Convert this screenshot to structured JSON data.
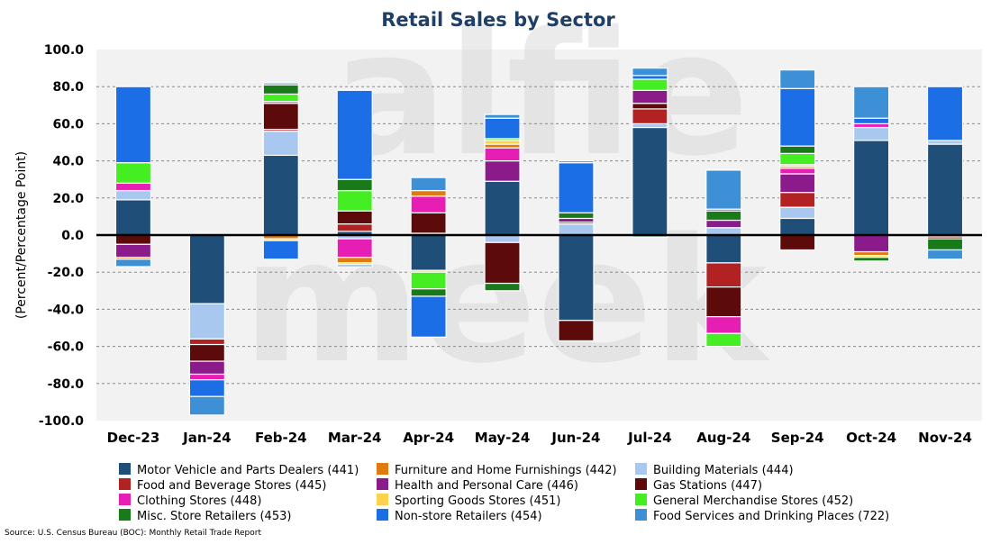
{
  "chart_data": {
    "type": "bar",
    "stacked": true,
    "title": "Retail Sales by Sector",
    "ylabel": "(Percent/Percentage Point)",
    "xlabel": "",
    "ylim": [
      -100,
      100
    ],
    "yticks": [
      "100.0",
      "80.0",
      "60.0",
      "40.0",
      "20.0",
      "0.0",
      "-20.0",
      "-40.0",
      "-60.0",
      "-80.0",
      "-100.0"
    ],
    "grid": "horizontal dashed",
    "legend_position": "bottom",
    "watermark": "alfie meek",
    "categories": [
      "Dec-23",
      "Jan-24",
      "Feb-24",
      "Mar-24",
      "Apr-24",
      "May-24",
      "Jun-24",
      "Jul-24",
      "Aug-24",
      "Sep-24",
      "Oct-24",
      "Nov-24"
    ],
    "series": [
      {
        "name": "Motor Vehicle and Parts Dealers (441)",
        "color": "#1f4e79",
        "values": [
          19,
          -37,
          43,
          2,
          -19,
          29,
          -46,
          58,
          -15,
          9,
          51,
          49
        ]
      },
      {
        "name": "Building Materials (444)",
        "color": "#a9c8f0",
        "values": [
          5,
          -19,
          13,
          -2,
          1,
          -4,
          6,
          2,
          4,
          6,
          7,
          2
        ]
      },
      {
        "name": "Food and Beverage Stores (445)",
        "color": "#b22222",
        "values": [
          0,
          -3,
          1,
          4,
          0,
          0,
          1,
          8,
          -13,
          8,
          0,
          -1
        ]
      },
      {
        "name": "Gas Stations (447)",
        "color": "#5c0a0a",
        "values": [
          -5,
          -9,
          14,
          7,
          11,
          -22,
          -11,
          3,
          -16,
          -8,
          0,
          -1
        ]
      },
      {
        "name": "Health and Personal Care (446)",
        "color": "#8b1a8b",
        "values": [
          -7,
          -7,
          0,
          0,
          0,
          11,
          2,
          7,
          4,
          10,
          -9,
          0
        ]
      },
      {
        "name": "Clothing Stores (448)",
        "color": "#e61eb4",
        "values": [
          4,
          -3,
          1,
          -10,
          9,
          7,
          0,
          0,
          -9,
          3,
          2,
          0
        ]
      },
      {
        "name": "Furniture and Home Furnishings (442)",
        "color": "#e07b10",
        "values": [
          -1,
          0,
          -2,
          -3,
          3,
          2,
          0,
          0,
          0,
          1,
          -2,
          0
        ]
      },
      {
        "name": "Sporting Goods Stores (451)",
        "color": "#ffd24d",
        "values": [
          0,
          0,
          -1,
          -1,
          -1,
          2,
          0,
          0,
          0,
          1,
          -1,
          0
        ]
      },
      {
        "name": "General Merchandise Stores (452)",
        "color": "#44ee22",
        "values": [
          11,
          0,
          4,
          11,
          -9,
          1,
          0,
          6,
          -7,
          6,
          0,
          0
        ]
      },
      {
        "name": "Misc. Store Retailers (453)",
        "color": "#187a18",
        "values": [
          0,
          0,
          5,
          6,
          -4,
          -4,
          3,
          -1,
          5,
          4,
          -2,
          -6
        ]
      },
      {
        "name": "Non-store Retailers (454)",
        "color": "#1c6ee6",
        "values": [
          41,
          -9,
          -10,
          48,
          -22,
          11,
          27,
          2,
          1,
          31,
          3,
          29
        ]
      },
      {
        "name": "Food Services and Drinking Places (722)",
        "color": "#3d8fd6",
        "values": [
          -4,
          -10,
          1,
          -1,
          7,
          2,
          1,
          4,
          21,
          10,
          17,
          -5
        ]
      }
    ],
    "legend_order": [
      "Motor Vehicle and Parts Dealers (441)",
      "Furniture and Home Furnishings (442)",
      "Building Materials (444)",
      "Food and Beverage Stores (445)",
      "Health and Personal Care (446)",
      "Gas Stations (447)",
      "Clothing Stores (448)",
      "Sporting Goods Stores (451)",
      "General Merchandise Stores (452)",
      "Misc. Store Retailers (453)",
      "Non-store Retailers (454)",
      "Food Services and Drinking Places (722)"
    ]
  },
  "source_note": "Source: U.S. Census Bureau (BOC): Monthly Retail Trade Report"
}
